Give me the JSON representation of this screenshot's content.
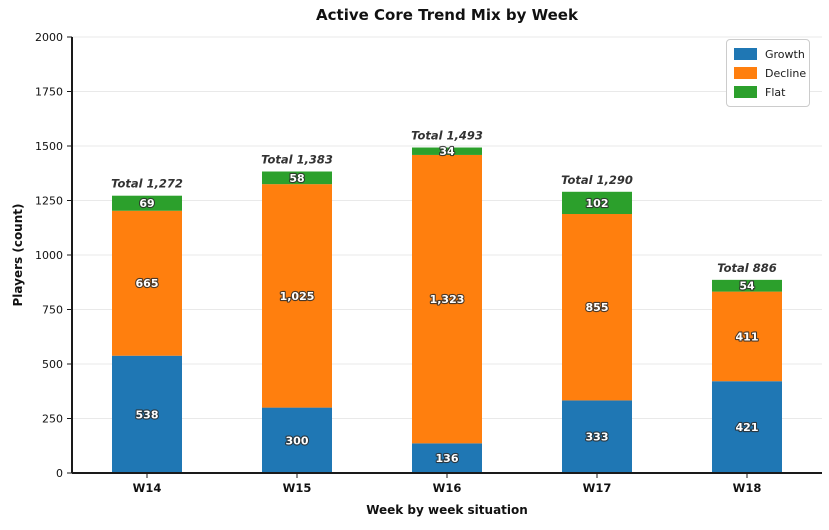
{
  "chart_data": {
    "type": "bar",
    "stacked": true,
    "title": "Active Core Trend Mix by Week",
    "xlabel": "Week by week situation",
    "ylabel": "Players (count)",
    "categories": [
      "W14",
      "W15",
      "W16",
      "W17",
      "W18"
    ],
    "series": [
      {
        "name": "Growth",
        "color": "#1f77b4",
        "values": [
          538,
          300,
          136,
          333,
          421
        ],
        "value_labels": [
          "538",
          "300",
          "136",
          "333",
          "421"
        ]
      },
      {
        "name": "Decline",
        "color": "#ff7f0e",
        "values": [
          665,
          1025,
          1323,
          855,
          411
        ],
        "value_labels": [
          "665",
          "1,025",
          "1,323",
          "855",
          "411"
        ]
      },
      {
        "name": "Flat",
        "color": "#2ca02c",
        "values": [
          69,
          58,
          34,
          102,
          54
        ],
        "value_labels": [
          "69",
          "58",
          "34",
          "102",
          "54"
        ]
      }
    ],
    "totals": [
      1272,
      1383,
      1493,
      1290,
      886
    ],
    "total_labels": [
      "Total 1,272",
      "Total 1,383",
      "Total 1,493",
      "Total 1,290",
      "Total 886"
    ],
    "ylim": [
      0,
      2000
    ],
    "ytick_step": 250,
    "grid": true,
    "grid_color": "#e9e9e9",
    "spine_color": "#1a1a1a",
    "background": "#ffffff",
    "legend_position": "upper right"
  }
}
